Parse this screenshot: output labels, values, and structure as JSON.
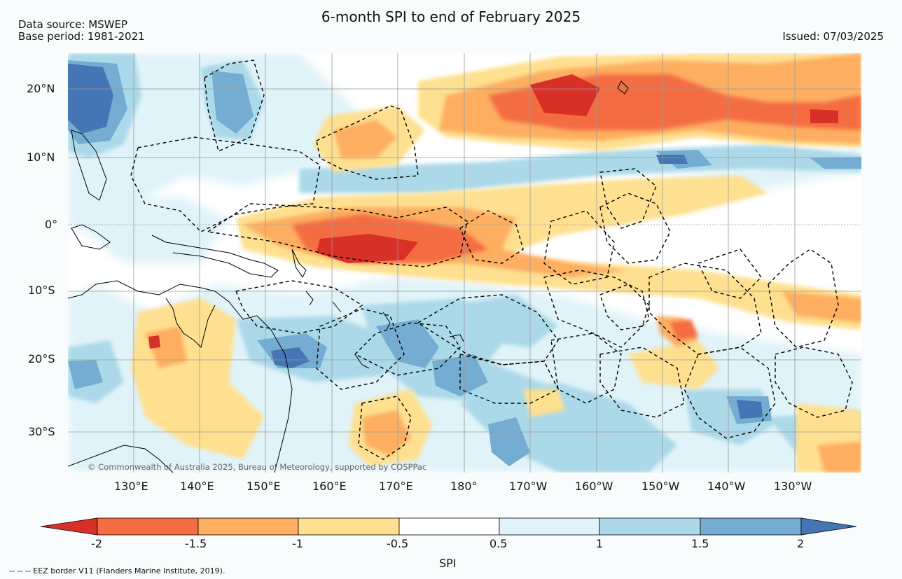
{
  "header": {
    "title": "6-month SPI to end of February 2025",
    "data_source": "Data source: MSWEP",
    "base_period": "Base period: 1981-2021",
    "issued": "Issued: 07/03/2025"
  },
  "map": {
    "lat_labels": [
      "20°N",
      "10°N",
      "0°",
      "10°S",
      "20°S",
      "30°S"
    ],
    "lon_labels": [
      "130°E",
      "140°E",
      "150°E",
      "160°E",
      "170°E",
      "180°",
      "170°W",
      "160°W",
      "150°W",
      "140°W",
      "130°W"
    ],
    "copyright": "© Commonwealth of Australia 2025, Bureau of Meteorology, supported by COSPPac",
    "colors": {
      "dry_extreme": "#d73027",
      "dry_severe": "#f46d43",
      "dry_moderate": "#fdae61",
      "dry_mild": "#fee090",
      "near_normal": "#ffffff",
      "wet_mild": "#e0f3f8",
      "wet_moderate": "#abd9e9",
      "wet_severe": "#74add1",
      "wet_extreme": "#4575b4"
    }
  },
  "colorbar": {
    "labels": [
      "-2",
      "-1.5",
      "-1",
      "-0.5",
      "0.5",
      "1",
      "1.5",
      "2"
    ],
    "title": "SPI",
    "colors": [
      "#d73027",
      "#f46d43",
      "#fdae61",
      "#fee090",
      "#ffffff",
      "#e0f3f8",
      "#abd9e9",
      "#74add1",
      "#4575b4"
    ]
  },
  "footnote": "-- -- -- EEZ border V11 (Flanders Marine Institute, 2019)."
}
